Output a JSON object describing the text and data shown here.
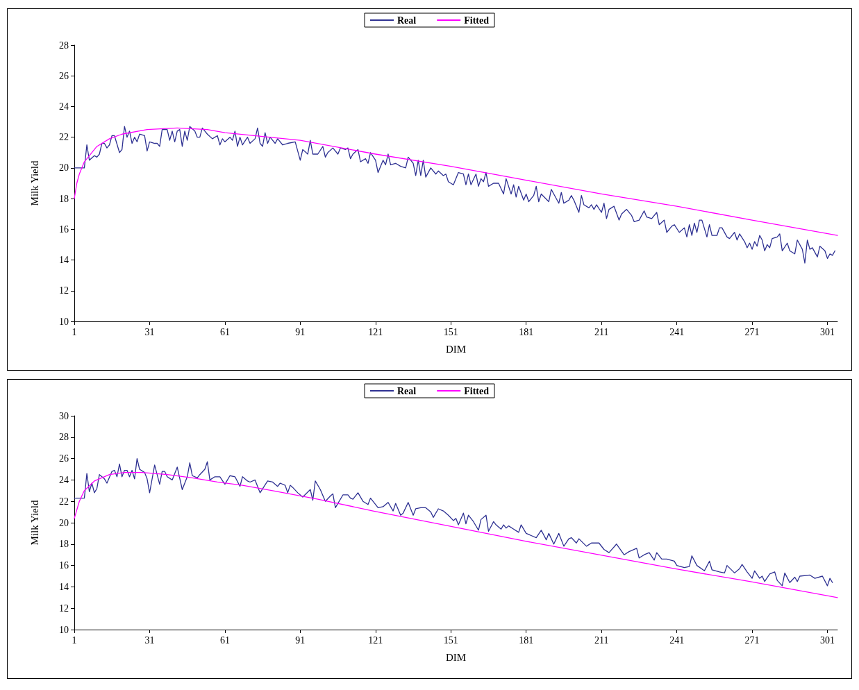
{
  "chart_data": [
    {
      "type": "line",
      "xlabel": "DIM",
      "ylabel": "Milk Yield",
      "xlim": [
        1,
        305
      ],
      "xticks": [
        1,
        31,
        61,
        91,
        121,
        151,
        181,
        211,
        241,
        271,
        301
      ],
      "ylim": [
        10,
        28
      ],
      "yticks": [
        10,
        12,
        14,
        16,
        18,
        20,
        22,
        24,
        26,
        28
      ],
      "legend": "top",
      "grid": false,
      "marker": "none",
      "line_style": "solid",
      "series": [
        {
          "name": "Real",
          "color": "#2e3192",
          "x": [
            1,
            5,
            6,
            7,
            9,
            10,
            11,
            12,
            13,
            14,
            15,
            16,
            17,
            19,
            20,
            21,
            22,
            23,
            24,
            25,
            26,
            27,
            29,
            30,
            31,
            33,
            34,
            35,
            36,
            38,
            39,
            40,
            41,
            42,
            43,
            44,
            45,
            46,
            47,
            49,
            50,
            51,
            52,
            54,
            56,
            58,
            59,
            60,
            61,
            63,
            64,
            65,
            66,
            67,
            68,
            70,
            71,
            73,
            74,
            75,
            76,
            77,
            78,
            79,
            81,
            82,
            84,
            86,
            89,
            90,
            91,
            92,
            94,
            95,
            96,
            98,
            100,
            101,
            102,
            104,
            106,
            107,
            109,
            110,
            111,
            112,
            114,
            115,
            117,
            118,
            119,
            121,
            122,
            124,
            125,
            126,
            127,
            129,
            131,
            133,
            134,
            136,
            137,
            138,
            139,
            140,
            141,
            143,
            145,
            146,
            148,
            149,
            150,
            152,
            154,
            156,
            157,
            158,
            159,
            161,
            162,
            163,
            164,
            165,
            166,
            168,
            170,
            172,
            173,
            175,
            176,
            177,
            178,
            180,
            181,
            182,
            184,
            185,
            186,
            187,
            190,
            191,
            192,
            194,
            195,
            196,
            198,
            199,
            200,
            202,
            203,
            204,
            206,
            207,
            208,
            209,
            211,
            212,
            213,
            214,
            216,
            218,
            219,
            221,
            223,
            224,
            226,
            228,
            229,
            231,
            233,
            234,
            236,
            237,
            239,
            240,
            242,
            244,
            245,
            246,
            247,
            248,
            249,
            250,
            251,
            253,
            254,
            255,
            257,
            258,
            259,
            261,
            262,
            264,
            265,
            266,
            268,
            269,
            270,
            271,
            272,
            273,
            274,
            275,
            276,
            277,
            278,
            279,
            281,
            282,
            283,
            285,
            286,
            288,
            289,
            291,
            292,
            293,
            294,
            295,
            297,
            298,
            300,
            301,
            302,
            303,
            304
          ],
          "values": [
            20.0,
            20.0,
            21.5,
            20.5,
            20.8,
            20.7,
            20.9,
            21.6,
            21.6,
            21.3,
            21.5,
            22.1,
            22.1,
            21.0,
            21.2,
            22.7,
            22.0,
            22.4,
            21.6,
            22.0,
            21.7,
            22.2,
            22.1,
            21.1,
            21.7,
            21.6,
            21.6,
            21.4,
            22.5,
            22.5,
            21.8,
            22.4,
            21.7,
            22.4,
            22.5,
            21.4,
            22.4,
            21.8,
            22.7,
            22.4,
            22.0,
            22.0,
            22.6,
            22.2,
            21.9,
            22.1,
            21.5,
            21.9,
            21.7,
            22.0,
            21.8,
            22.4,
            21.4,
            22.0,
            21.5,
            22.0,
            21.6,
            21.9,
            22.6,
            21.6,
            21.4,
            22.3,
            21.6,
            22.0,
            21.6,
            21.9,
            21.5,
            21.6,
            21.7,
            21.1,
            20.5,
            21.2,
            20.9,
            21.8,
            20.9,
            20.9,
            21.4,
            20.7,
            21.0,
            21.3,
            20.9,
            21.3,
            21.2,
            21.3,
            20.6,
            20.9,
            21.2,
            20.4,
            20.6,
            20.3,
            21.0,
            20.5,
            19.7,
            20.5,
            20.2,
            20.9,
            20.2,
            20.3,
            20.1,
            20.0,
            20.7,
            20.3,
            19.5,
            20.5,
            19.5,
            20.5,
            19.4,
            20.0,
            19.6,
            19.8,
            19.5,
            19.6,
            19.1,
            18.9,
            19.7,
            19.6,
            18.9,
            19.6,
            18.9,
            19.6,
            18.8,
            19.3,
            19.1,
            19.7,
            18.8,
            19.0,
            19.0,
            18.3,
            19.3,
            18.3,
            18.9,
            18.1,
            18.8,
            17.9,
            18.3,
            17.8,
            18.2,
            18.8,
            17.8,
            18.3,
            17.8,
            18.6,
            18.3,
            17.7,
            18.4,
            17.7,
            17.9,
            18.2,
            17.9,
            17.1,
            18.2,
            17.6,
            17.4,
            17.6,
            17.3,
            17.6,
            17.1,
            17.7,
            16.7,
            17.3,
            17.5,
            16.6,
            17.0,
            17.3,
            16.9,
            16.5,
            16.6,
            17.2,
            16.8,
            16.7,
            17.1,
            16.3,
            16.6,
            15.8,
            16.2,
            16.3,
            15.8,
            16.1,
            15.5,
            16.3,
            15.6,
            16.4,
            15.8,
            16.6,
            16.6,
            15.5,
            16.3,
            15.6,
            15.6,
            16.1,
            16.1,
            15.5,
            15.4,
            15.8,
            15.3,
            15.7,
            15.2,
            14.8,
            15.1,
            14.7,
            15.2,
            14.9,
            15.6,
            15.3,
            14.6,
            15.0,
            14.8,
            15.4,
            15.5,
            15.7,
            14.6,
            15.1,
            14.6,
            14.4,
            15.3,
            14.7,
            13.8,
            15.3,
            14.7,
            14.8,
            14.2,
            14.9,
            14.6,
            14.1,
            14.4,
            14.3,
            14.6
          ]
        },
        {
          "name": "Fitted",
          "color": "#ff00ff",
          "x": [
            1,
            2,
            3,
            5,
            10,
            15,
            20,
            30,
            42,
            54,
            61,
            91,
            121,
            151,
            181,
            211,
            241,
            271,
            305
          ],
          "values": [
            18.0,
            19.0,
            19.6,
            20.4,
            21.4,
            21.9,
            22.2,
            22.5,
            22.6,
            22.5,
            22.3,
            21.8,
            20.9,
            20.1,
            19.2,
            18.3,
            17.5,
            16.6,
            15.6
          ]
        }
      ]
    },
    {
      "type": "line",
      "xlabel": "DIM",
      "ylabel": "Milk Yield",
      "xlim": [
        1,
        305
      ],
      "xticks": [
        1,
        31,
        61,
        91,
        121,
        151,
        181,
        211,
        241,
        271,
        301
      ],
      "ylim": [
        10,
        30
      ],
      "yticks": [
        10,
        12,
        14,
        16,
        18,
        20,
        22,
        24,
        26,
        28,
        30
      ],
      "legend": "top",
      "grid": false,
      "marker": "none",
      "line_style": "solid",
      "series": [
        {
          "name": "Real",
          "color": "#2e3192",
          "x": [
            1,
            5,
            6,
            7,
            8,
            9,
            10,
            11,
            13,
            14,
            16,
            17,
            18,
            19,
            20,
            21,
            22,
            23,
            24,
            25,
            26,
            27,
            29,
            30,
            31,
            33,
            35,
            36,
            37,
            38,
            40,
            42,
            44,
            46,
            47,
            48,
            50,
            51,
            53,
            54,
            55,
            57,
            59,
            61,
            63,
            65,
            67,
            68,
            70,
            71,
            73,
            75,
            78,
            80,
            82,
            83,
            85,
            86,
            87,
            88,
            90,
            92,
            95,
            96,
            97,
            99,
            101,
            103,
            104,
            105,
            108,
            110,
            111,
            112,
            114,
            116,
            118,
            119,
            122,
            124,
            126,
            128,
            129,
            131,
            132,
            134,
            136,
            137,
            139,
            141,
            143,
            144,
            146,
            148,
            150,
            152,
            153,
            154,
            156,
            157,
            158,
            160,
            162,
            163,
            165,
            166,
            168,
            169,
            171,
            172,
            173,
            174,
            176,
            178,
            179,
            181,
            183,
            185,
            187,
            189,
            190,
            192,
            194,
            196,
            198,
            199,
            201,
            202,
            205,
            207,
            210,
            212,
            214,
            217,
            220,
            222,
            225,
            226,
            228,
            230,
            232,
            233,
            235,
            237,
            240,
            241,
            244,
            246,
            247,
            249,
            252,
            254,
            255,
            258,
            260,
            261,
            264,
            266,
            267,
            269,
            271,
            272,
            274,
            275,
            276,
            278,
            280,
            281,
            283,
            284,
            286,
            288,
            289,
            290,
            294,
            296,
            299,
            301,
            302,
            303
          ],
          "values": [
            22.3,
            22.3,
            24.6,
            22.9,
            23.7,
            22.8,
            23.2,
            24.5,
            24.1,
            23.7,
            24.8,
            24.9,
            24.3,
            25.5,
            24.3,
            24.9,
            24.9,
            24.3,
            24.9,
            24.1,
            26.0,
            25.0,
            24.7,
            24.1,
            22.8,
            25.4,
            23.6,
            24.8,
            24.8,
            24.3,
            24.0,
            25.2,
            23.1,
            24.3,
            25.6,
            24.4,
            24.2,
            24.5,
            25.0,
            25.7,
            24.0,
            24.3,
            24.3,
            23.6,
            24.4,
            24.3,
            23.4,
            24.3,
            23.9,
            23.8,
            24.0,
            22.8,
            23.9,
            23.8,
            23.4,
            23.7,
            23.5,
            22.8,
            23.5,
            23.3,
            22.8,
            22.4,
            23.1,
            22.1,
            23.9,
            23.1,
            22.0,
            22.5,
            22.7,
            21.4,
            22.6,
            22.6,
            22.3,
            22.2,
            22.8,
            22.0,
            21.7,
            22.3,
            21.4,
            21.5,
            21.9,
            21.1,
            21.8,
            20.7,
            20.9,
            21.9,
            20.7,
            21.3,
            21.4,
            21.4,
            21.0,
            20.5,
            21.3,
            21.1,
            20.7,
            20.2,
            20.4,
            19.8,
            20.9,
            19.9,
            20.7,
            20.1,
            19.3,
            20.3,
            20.7,
            19.2,
            20.1,
            19.8,
            19.4,
            19.8,
            19.5,
            19.7,
            19.4,
            19.1,
            19.8,
            19.0,
            18.8,
            18.6,
            19.3,
            18.4,
            19.0,
            18.0,
            19.0,
            17.8,
            18.5,
            18.6,
            18.1,
            18.5,
            17.8,
            18.1,
            18.1,
            17.5,
            17.2,
            18.0,
            17.0,
            17.3,
            17.6,
            16.7,
            17.0,
            17.2,
            16.5,
            17.2,
            16.6,
            16.6,
            16.4,
            16.0,
            15.8,
            15.9,
            16.9,
            16.0,
            15.5,
            16.4,
            15.6,
            15.4,
            15.3,
            16.0,
            15.3,
            15.7,
            16.1,
            15.4,
            14.8,
            15.5,
            14.8,
            15.0,
            14.5,
            15.2,
            15.4,
            14.6,
            14.1,
            15.3,
            14.4,
            14.9,
            14.5,
            15.0,
            15.1,
            14.8,
            15.0,
            14.1,
            14.8,
            14.4
          ]
        },
        {
          "name": "Fitted",
          "color": "#ff00ff",
          "x": [
            1,
            3,
            5,
            9,
            15,
            21,
            28,
            38,
            48,
            58,
            68,
            80,
            98,
            120,
            148,
            180,
            210,
            240,
            270,
            305
          ],
          "values": [
            20.4,
            22.0,
            23.0,
            23.9,
            24.5,
            24.7,
            24.7,
            24.5,
            24.2,
            23.8,
            23.5,
            23.0,
            22.2,
            21.1,
            19.8,
            18.3,
            17.0,
            15.7,
            14.5,
            13.0
          ]
        }
      ]
    }
  ]
}
